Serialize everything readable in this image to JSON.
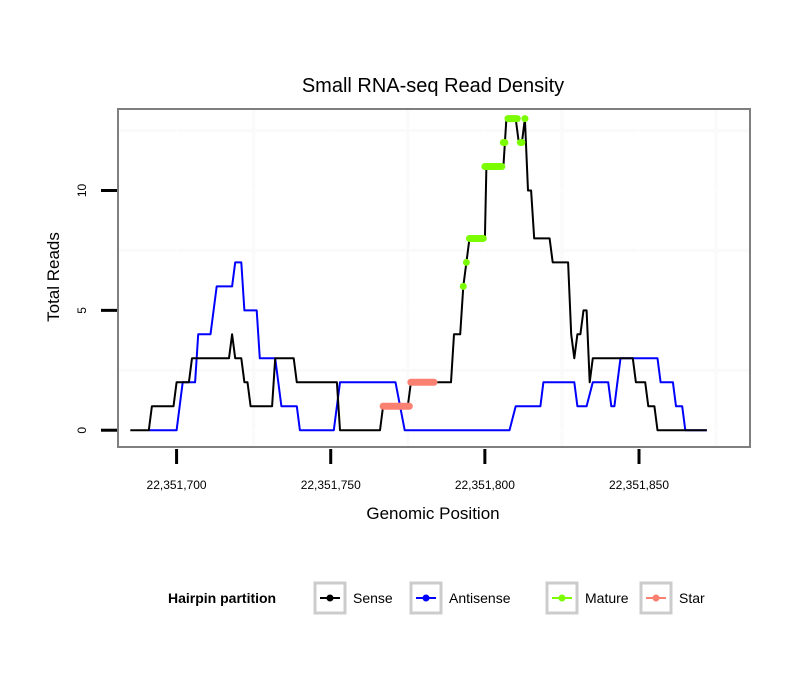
{
  "chart_data": {
    "type": "line",
    "title": "Small RNA-seq Read Density",
    "xlabel": "Genomic Position",
    "ylabel": "Total Reads",
    "xlim": [
      22351681,
      22351886
    ],
    "ylim": [
      -0.7,
      13.4
    ],
    "x_ticks": [
      22351700,
      22351750,
      22351800,
      22351850
    ],
    "x_tick_labels": [
      "22,351,700",
      "22,351,750",
      "22,351,800",
      "22,351,850"
    ],
    "y_ticks": [
      0,
      5,
      10
    ],
    "y_tick_labels": [
      "0",
      "5",
      "10"
    ],
    "x_minor_grid": [
      22351725,
      22351775,
      22351825,
      22351875
    ],
    "y_minor_grid": [
      2.5,
      7.5,
      12.5
    ],
    "grid": true,
    "legend": {
      "title": "Hairpin partition",
      "position": "bottom",
      "entries": [
        {
          "label": "Sense",
          "color": "#000000"
        },
        {
          "label": "Antisense",
          "color": "#0000ff"
        },
        {
          "label": "Mature",
          "color": "#7cfc00"
        },
        {
          "label": "Star",
          "color": "#fa8072"
        }
      ]
    },
    "series": [
      {
        "name": "Sense",
        "color": "#000000",
        "style": "line",
        "x": [
          22351685,
          22351691,
          22351692,
          22351699,
          22351700,
          22351704,
          22351705,
          22351717,
          22351718,
          22351719,
          22351721,
          22351722,
          22351723,
          22351724,
          22351731,
          22351732,
          22351738,
          22351739,
          22351752,
          22351753,
          22351766,
          22351767,
          22351775,
          22351776,
          22351789,
          22351790,
          22351792,
          22351793,
          22351794,
          22351795,
          22351800,
          22351800.5,
          22351806,
          22351806.5,
          22351807,
          22351810,
          22351811,
          22351812,
          22351813,
          22351814,
          22351815,
          22351816,
          22351821,
          22351822,
          22351827,
          22351828,
          22351829,
          22351830,
          22351831,
          22351832,
          22351833,
          22351834,
          22351835,
          22351848,
          22351849,
          22351852,
          22351853,
          22351855,
          22351856,
          22351872
        ],
        "y": [
          0,
          0,
          1,
          1,
          2,
          2,
          3,
          3,
          4,
          3,
          3,
          2,
          2,
          1,
          1,
          3,
          3,
          2,
          2,
          0,
          0,
          1,
          1,
          2,
          2,
          4,
          4,
          6,
          7,
          8,
          8,
          11,
          11,
          12,
          13,
          13,
          12,
          12,
          13,
          10,
          10,
          8,
          8,
          7,
          7,
          4,
          3,
          4,
          4,
          5,
          5,
          2,
          3,
          3,
          2,
          2,
          1,
          1,
          0,
          0
        ]
      },
      {
        "name": "Antisense",
        "color": "#0000ff",
        "style": "line",
        "x": [
          22351691,
          22351700,
          22351702,
          22351706,
          22351707,
          22351711,
          22351713,
          22351718,
          22351719,
          22351721,
          22351722,
          22351726,
          22351727,
          22351732,
          22351734,
          22351739,
          22351740,
          22351751,
          22351753,
          22351771,
          22351774,
          22351808,
          22351810,
          22351818,
          22351819,
          22351829,
          22351830,
          22351833,
          22351835,
          22351840,
          22351841,
          22351842,
          22351843,
          22351844,
          22351856,
          22351857,
          22351861,
          22351862,
          22351864,
          22351865,
          22351872
        ],
        "y": [
          0,
          0,
          2,
          2,
          4,
          4,
          6,
          6,
          7,
          7,
          5,
          5,
          3,
          3,
          1,
          1,
          0,
          0,
          2,
          2,
          0,
          0,
          1,
          1,
          2,
          2,
          1,
          1,
          2,
          2,
          1,
          1,
          2,
          3,
          3,
          2,
          2,
          1,
          1,
          0,
          0
        ]
      },
      {
        "name": "Mature",
        "color": "#7cfc00",
        "style": "points",
        "segments": [
          {
            "x": [
              22351793,
              22351793
            ],
            "y": 6
          },
          {
            "x": [
              22351794,
              22351794
            ],
            "y": 7
          },
          {
            "x": [
              22351795,
              22351799.5
            ],
            "y": 8
          },
          {
            "x": [
              22351800,
              22351805.5
            ],
            "y": 11
          },
          {
            "x": [
              22351806,
              22351806.5
            ],
            "y": 12
          },
          {
            "x": [
              22351807.5,
              22351810.5
            ],
            "y": 13
          },
          {
            "x": [
              22351811.5,
              22351812
            ],
            "y": 12
          },
          {
            "x": [
              22351813,
              22351813
            ],
            "y": 13
          }
        ]
      },
      {
        "name": "Star",
        "color": "#fa8072",
        "style": "points",
        "segments": [
          {
            "x": [
              22351767,
              22351775.5
            ],
            "y": 1
          },
          {
            "x": [
              22351776,
              22351783.5
            ],
            "y": 2
          }
        ]
      }
    ]
  }
}
